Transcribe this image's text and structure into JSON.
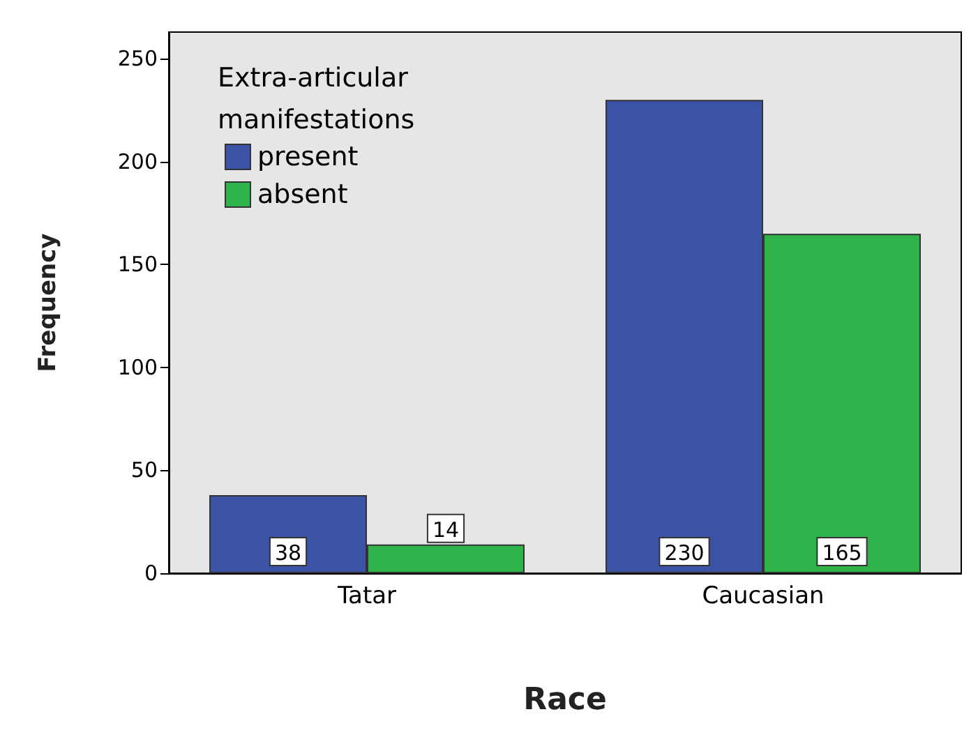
{
  "chart_data": {
    "type": "bar",
    "xlabel": "Race",
    "ylabel": "Frequency",
    "legend_title": "Extra-articular manifestations",
    "categories": [
      "Tatar",
      "Caucasian"
    ],
    "series": [
      {
        "name": "present",
        "color": "#3a53a4",
        "values": [
          38,
          230
        ]
      },
      {
        "name": "absent",
        "color": "#2db34a",
        "values": [
          14,
          165
        ]
      }
    ],
    "ylim": [
      0,
      263
    ],
    "yticks": [
      0,
      50,
      100,
      150,
      200,
      250
    ],
    "grid": false,
    "legend": "top left",
    "data_labels": true
  }
}
